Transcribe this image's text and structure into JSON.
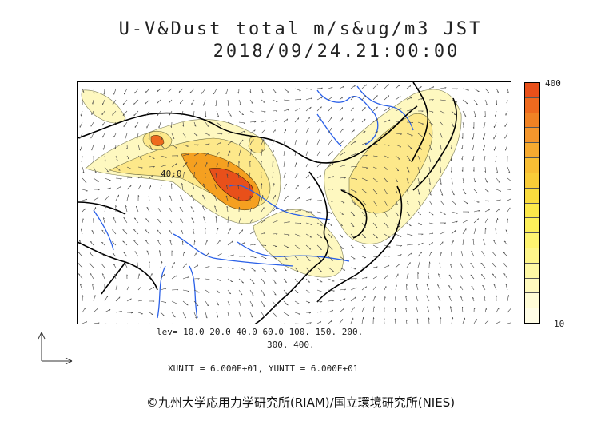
{
  "title": {
    "line1": "U-V&Dust total m/s&ug/m3 JST",
    "line2": "2018/09/24.21:00:00"
  },
  "colorbar": {
    "max_label": "400",
    "min_label": "10",
    "colors": [
      "#e8501a",
      "#ee6a1e",
      "#f08224",
      "#f4962c",
      "#f6aa30",
      "#f8be34",
      "#f9cc38",
      "#fadc3e",
      "#fce84a",
      "#fdf05a",
      "#fef470",
      "#fef68a",
      "#fef8a4",
      "#fffabe",
      "#fffcd6",
      "#fffde6"
    ]
  },
  "contour_levels": {
    "line1": "lev= 10.0 20.0 40.0 60.0 100. 150. 200.",
    "line2": "300. 400."
  },
  "map_labels": {
    "contour_label": "40.0"
  },
  "units": {
    "text": "XUNIT = 6.000E+01, YUNIT = 6.000E+01"
  },
  "credit": {
    "text": "©九州大学応用力学研究所(RIAM)/国立環境研究所(NIES)"
  },
  "colors": {
    "coast": "#000000",
    "rivers": "#2a60e8",
    "low_dust": "#fefad8",
    "mid_dust": "#fde88a",
    "high_dust": "#f5a020",
    "peak_dust": "#e8501a"
  }
}
